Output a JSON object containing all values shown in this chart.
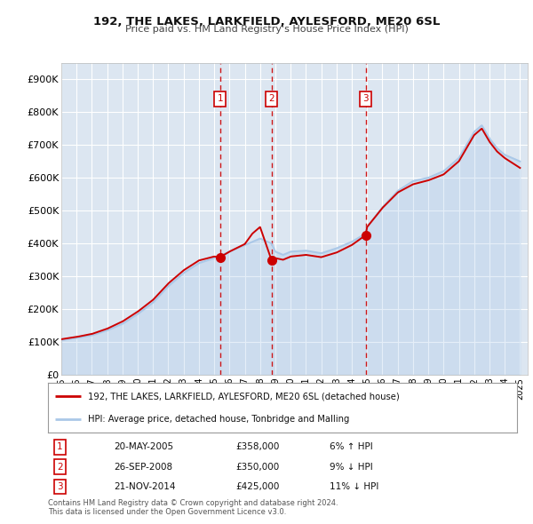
{
  "title": "192, THE LAKES, LARKFIELD, AYLESFORD, ME20 6SL",
  "subtitle": "Price paid vs. HM Land Registry's House Price Index (HPI)",
  "background_color": "#ffffff",
  "plot_bg_color": "#dce6f1",
  "grid_color": "#ffffff",
  "hpi_color": "#aac8e8",
  "price_color": "#cc0000",
  "vline_color": "#cc0000",
  "ylim": [
    0,
    950000
  ],
  "yticks": [
    0,
    100000,
    200000,
    300000,
    400000,
    500000,
    600000,
    700000,
    800000,
    900000
  ],
  "ytick_labels": [
    "£0",
    "£100K",
    "£200K",
    "£300K",
    "£400K",
    "£500K",
    "£600K",
    "£700K",
    "£800K",
    "£900K"
  ],
  "sale_dates": [
    2005.38,
    2008.74,
    2014.9
  ],
  "sale_prices": [
    358000,
    350000,
    425000
  ],
  "sale_labels": [
    "1",
    "2",
    "3"
  ],
  "legend_price_label": "192, THE LAKES, LARKFIELD, AYLESFORD, ME20 6SL (detached house)",
  "legend_hpi_label": "HPI: Average price, detached house, Tonbridge and Malling",
  "table_rows": [
    {
      "num": "1",
      "date": "20-MAY-2005",
      "price": "£358,000",
      "hpi": "6% ↑ HPI"
    },
    {
      "num": "2",
      "date": "26-SEP-2008",
      "price": "£350,000",
      "hpi": "9% ↓ HPI"
    },
    {
      "num": "3",
      "date": "21-NOV-2014",
      "price": "£425,000",
      "hpi": "11% ↓ HPI"
    }
  ],
  "footer": "Contains HM Land Registry data © Crown copyright and database right 2024.\nThis data is licensed under the Open Government Licence v3.0.",
  "xmin": 1995.0,
  "xmax": 2025.5
}
